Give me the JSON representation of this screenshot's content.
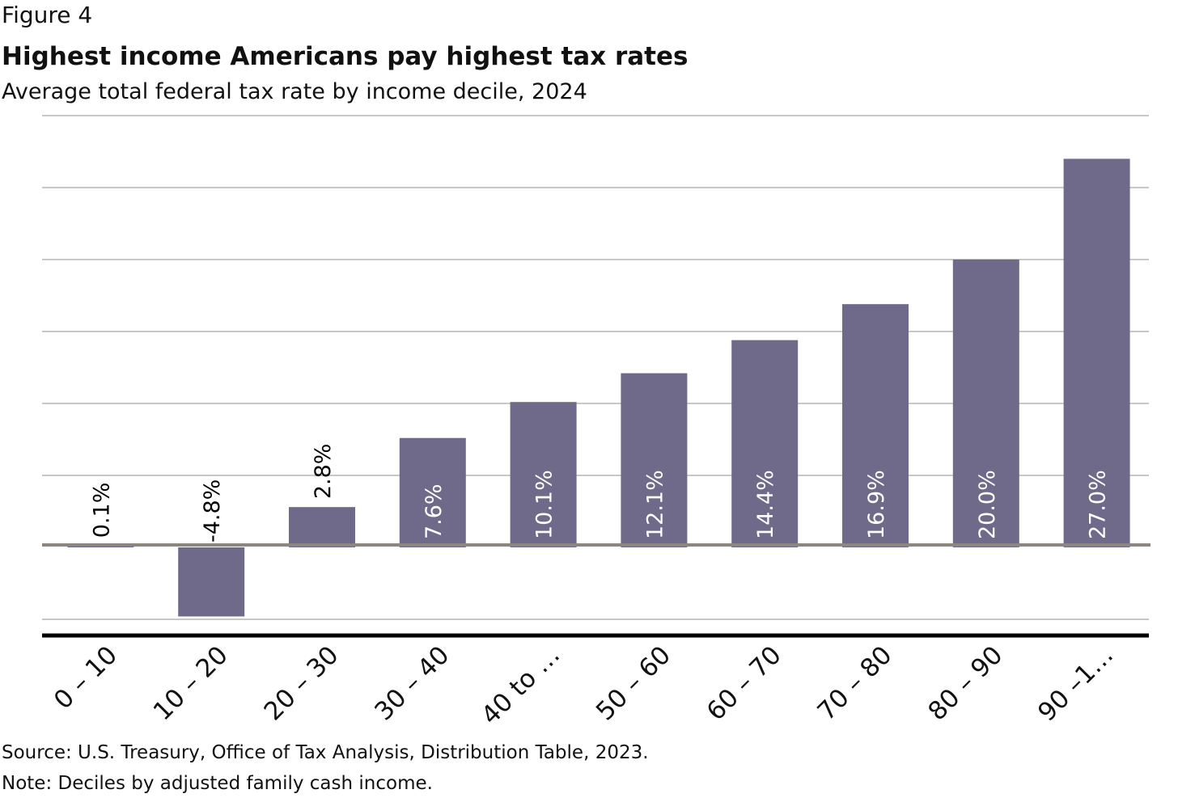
{
  "figure_label": "Figure 4",
  "title": "Highest income Americans pay highest tax rates",
  "subtitle": "Average total federal tax rate by income decile, 2024",
  "source": "Source: U.S. Treasury, Office of Tax Analysis, Distribution Table, 2023.",
  "note": "Note: Deciles by adjusted family cash income.",
  "colors": {
    "bar": "#706a8a",
    "zero_line": "#8c8580",
    "grid": "#c8c8c8"
  },
  "chart_data": {
    "type": "bar",
    "categories": [
      "0 – 10",
      "10 – 20",
      "20 – 30",
      "30 – 40",
      "40 to …",
      "50 – 60",
      "60 – 70",
      "70 – 80",
      "80 – 90",
      "90 –1…"
    ],
    "values": [
      0.1,
      -4.8,
      2.8,
      7.6,
      10.1,
      12.1,
      14.4,
      16.9,
      20.0,
      27.0
    ],
    "labels": [
      "0.1%",
      "-4.8%",
      "2.8%",
      "7.6%",
      "10.1%",
      "12.1%",
      "14.4%",
      "16.9%",
      "20.0%",
      "27.0%"
    ],
    "ylim": [
      -5,
      30
    ],
    "grid_step": 5,
    "grid": true,
    "legend": "none",
    "xlabel": "",
    "ylabel": ""
  }
}
